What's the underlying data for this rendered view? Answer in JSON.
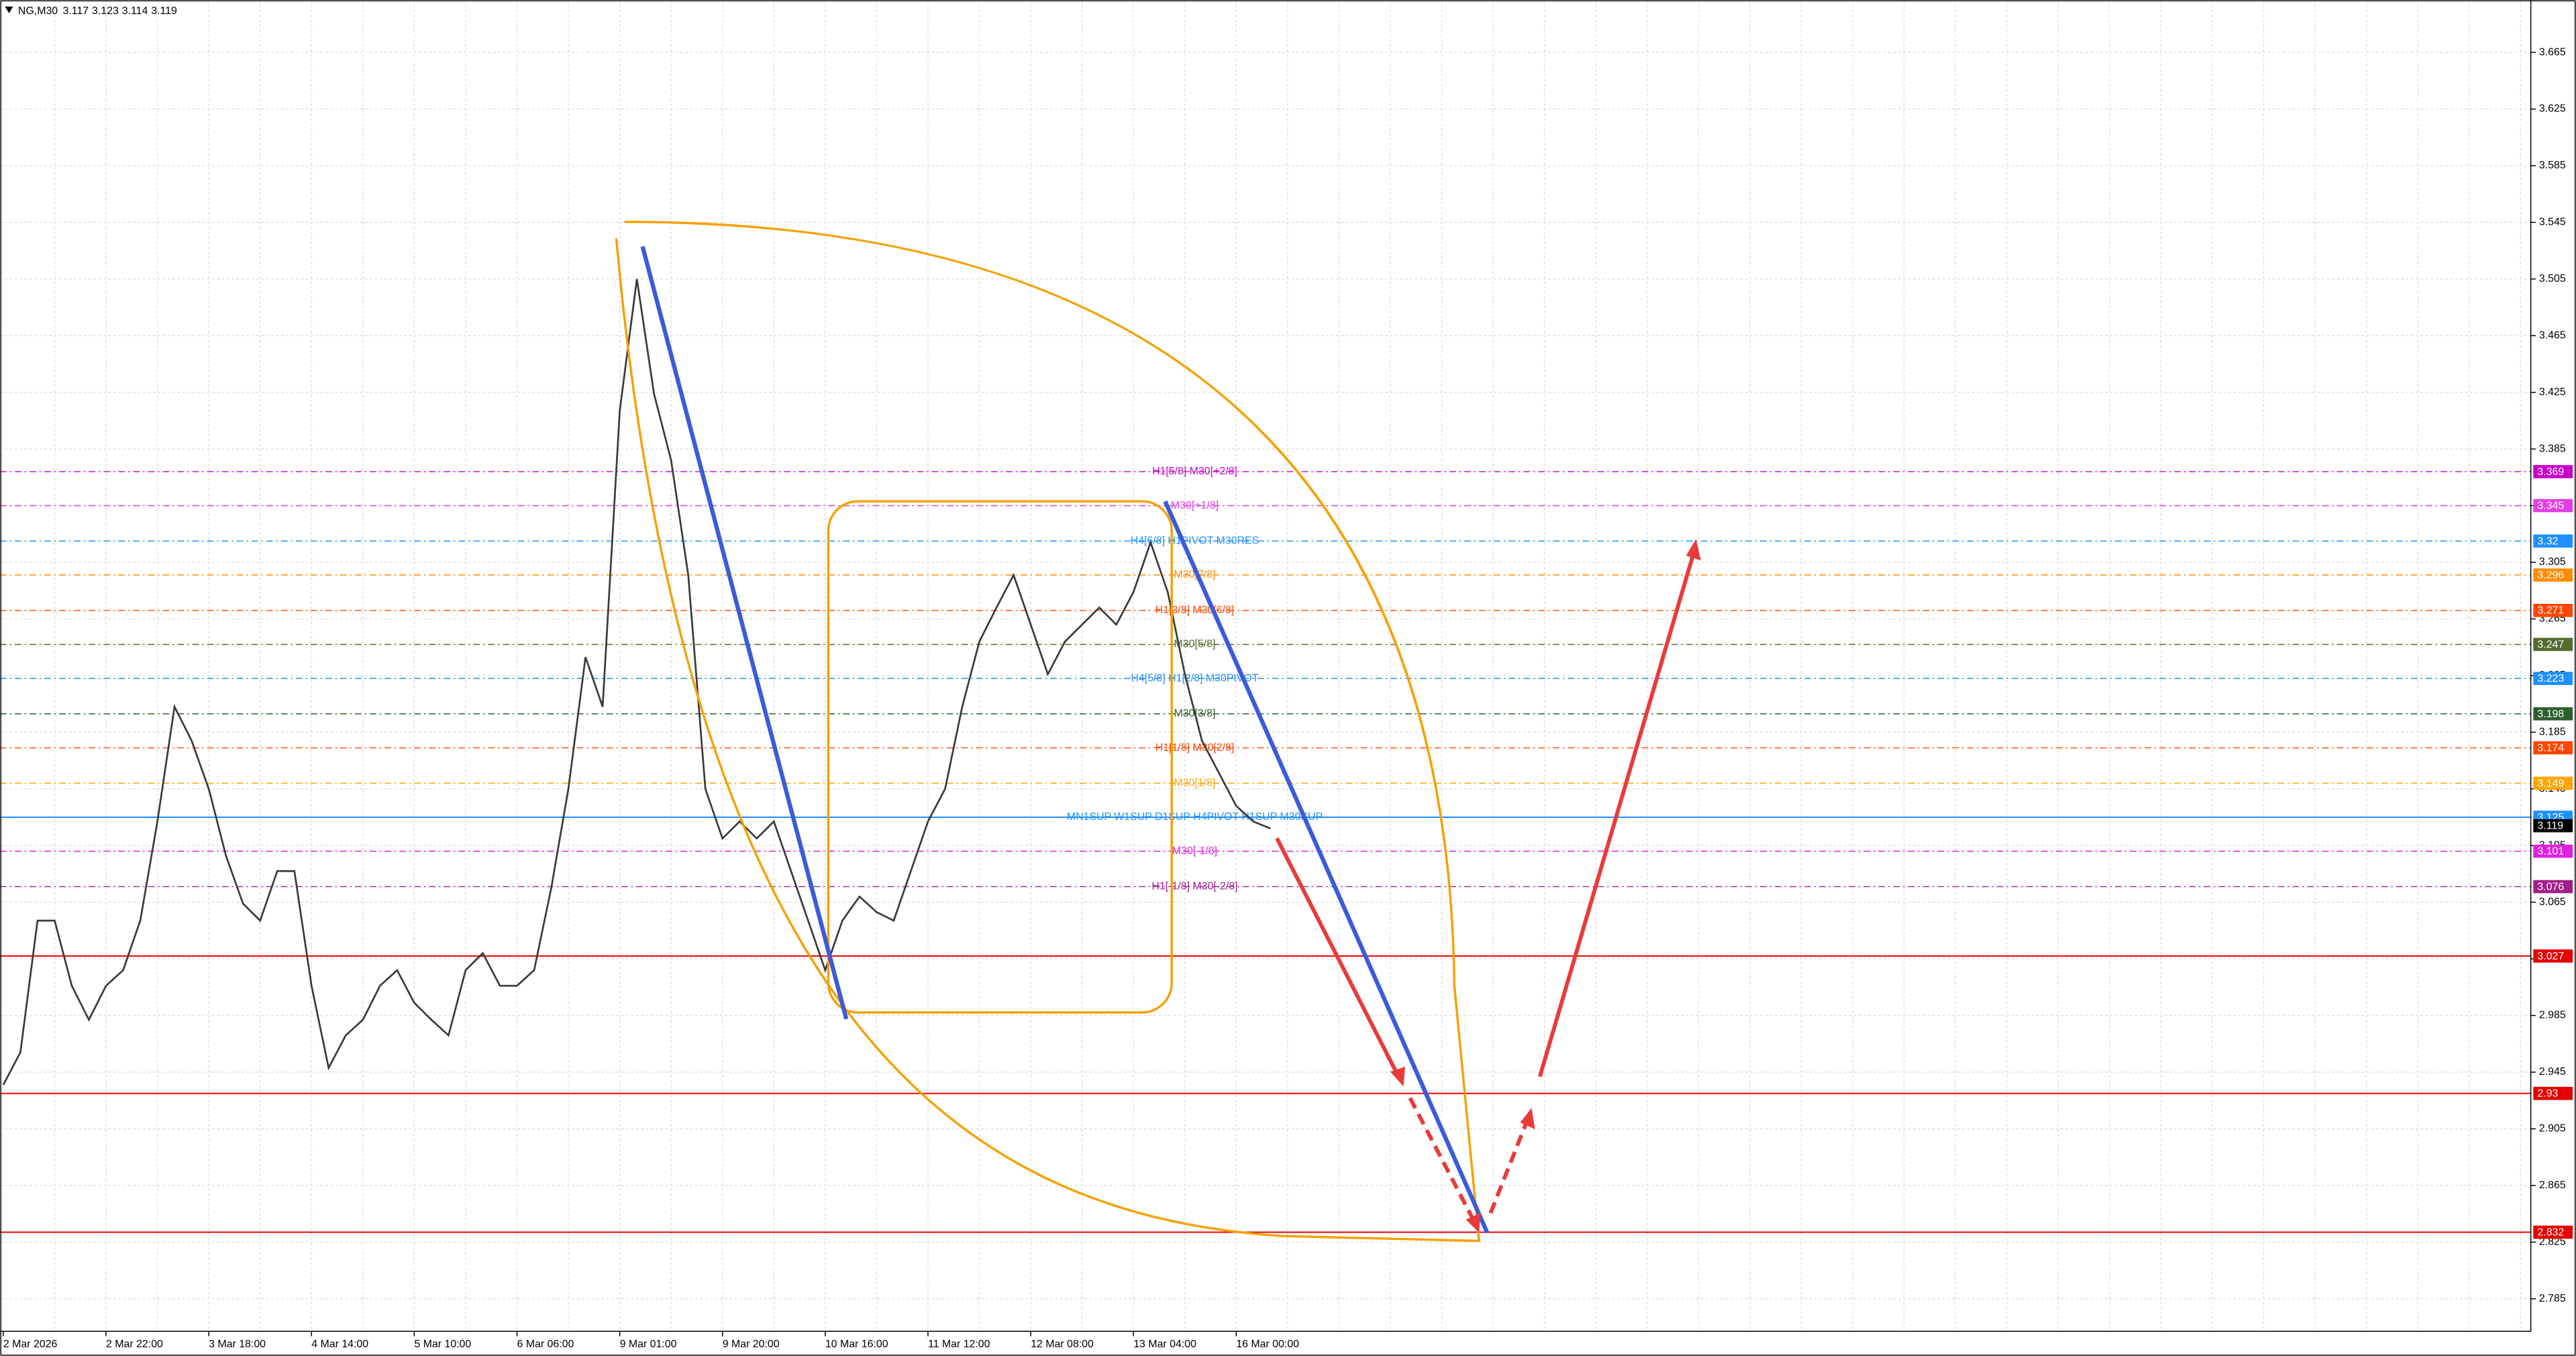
{
  "chart_data": {
    "type": "line",
    "symbol": "NG,M30",
    "ohlc": [
      3.117,
      3.123,
      3.114,
      3.119
    ],
    "categories": [
      "2 Mar 2026",
      null,
      null,
      null,
      null,
      null,
      "2 Mar 22:00",
      null,
      null,
      null,
      null,
      null,
      "3 Mar 18:00",
      null,
      null,
      null,
      null,
      null,
      "4 Mar 14:00",
      null,
      null,
      null,
      null,
      null,
      "5 Mar 10:00",
      null,
      null,
      null,
      null,
      null,
      "6 Mar 06:00",
      null,
      null,
      null,
      null,
      null,
      "9 Mar 01:00",
      null,
      null,
      null,
      null,
      null,
      "9 Mar 20:00",
      null,
      null,
      null,
      null,
      null,
      "10 Mar 16:00",
      null,
      null,
      null,
      null,
      null,
      "11 Mar 12:00",
      null,
      null,
      null,
      null,
      null,
      "12 Mar 08:00",
      null,
      null,
      null,
      null,
      null,
      "13 Mar 04:00",
      null,
      null,
      null,
      null,
      null,
      "16 Mar 00:00",
      null,
      null
    ],
    "values": [
      2.936,
      2.959,
      3.052,
      3.052,
      3.006,
      2.982,
      3.006,
      3.017,
      3.052,
      3.122,
      3.203,
      3.179,
      3.145,
      3.098,
      3.064,
      3.052,
      3.087,
      3.087,
      3.006,
      2.948,
      2.971,
      2.982,
      3.006,
      3.017,
      2.994,
      2.982,
      2.971,
      3.017,
      3.029,
      3.006,
      3.006,
      3.017,
      3.075,
      3.145,
      3.238,
      3.203,
      3.412,
      3.505,
      3.424,
      3.377,
      3.296,
      3.145,
      3.11,
      3.122,
      3.11,
      3.122,
      3.087,
      3.052,
      3.017,
      3.052,
      3.069,
      3.058,
      3.052,
      3.087,
      3.122,
      3.145,
      3.203,
      3.249,
      3.273,
      3.296,
      3.261,
      3.226,
      3.249,
      3.261,
      3.273,
      3.261,
      3.284,
      3.319,
      3.284,
      3.226,
      3.179,
      3.156,
      3.133,
      3.122,
      3.117
    ],
    "color": "#3a3a3a",
    "ylim": [
      2.762,
      3.702
    ],
    "yticks": [
      3.665,
      3.625,
      3.585,
      3.545,
      3.505,
      3.465,
      3.425,
      3.385,
      3.345,
      3.305,
      3.265,
      3.225,
      3.185,
      3.145,
      3.105,
      3.065,
      3.025,
      2.985,
      2.945,
      2.905,
      2.865,
      2.825,
      2.785
    ],
    "grid": true,
    "levels": [
      {
        "value": 3.369,
        "color": "#c800c8",
        "label": "H1[5/8] M30[+2/8]"
      },
      {
        "value": 3.345,
        "color": "#e040e0",
        "label": "M30[+1/8]"
      },
      {
        "value": 3.32,
        "color": "#1e90ff",
        "label": "H4[6/8] H1PIVOT M30RES"
      },
      {
        "value": 3.296,
        "color": "#ff8c00",
        "label": "M30[7/8]"
      },
      {
        "value": 3.271,
        "color": "#ff4500",
        "label": "H1[3/8] M30[6/8]"
      },
      {
        "value": 3.247,
        "color": "#556b2f",
        "label": "M30[5/8]"
      },
      {
        "value": 3.223,
        "color": "#1e90ff",
        "label": "H4[5/8] H1[2/8] M30PIVOT"
      },
      {
        "value": 3.198,
        "color": "#2f5f2f",
        "label": "M30[3/8]"
      },
      {
        "value": 3.174,
        "color": "#ff4500",
        "label": "H1[1/8] M30[2/8]"
      },
      {
        "value": 3.149,
        "color": "#ffa500",
        "label": "M30[1/8]"
      },
      {
        "value": 3.125,
        "color": "#1e90ff",
        "label": "MN1SUP W1SUP D1SUP H4PIVOT H1SUP M30SUP"
      },
      {
        "value": 3.101,
        "color": "#e020e0",
        "label": "M30[-1/8]"
      },
      {
        "value": 3.076,
        "color": "#a0208a",
        "label": "H1[-1/8] M30[-2/8]"
      },
      {
        "value": 3.027,
        "color": "#e60000"
      },
      {
        "value": 2.93,
        "color": "#e60000"
      },
      {
        "value": 2.832,
        "color": "#e60000"
      }
    ]
  }
}
